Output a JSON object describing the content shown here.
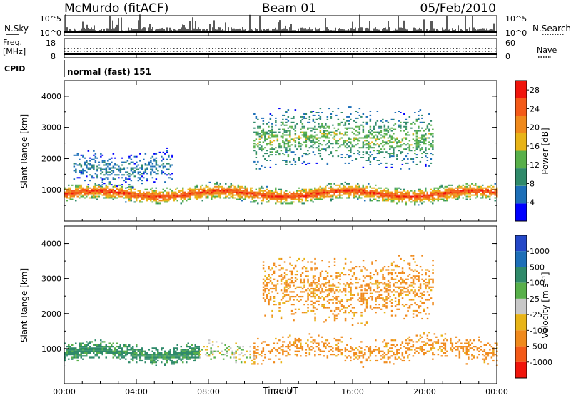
{
  "header": {
    "station": "McMurdo (fitACF)",
    "beam": "Beam 01",
    "date": "05/Feb/2010"
  },
  "status_panel": {
    "nsky_label": "N.Sky",
    "nsearch_label": "N.Search",
    "noise_ticks": [
      "10^5",
      "10^0"
    ],
    "freq_label_line1": "Freq.",
    "freq_label_line2": "[MHz]",
    "freq_ticks": [
      "18",
      "8"
    ],
    "nave_label": "Nave",
    "nave_ticks": [
      "60",
      "0"
    ],
    "cpid_label": "CPID",
    "cpid_value": "normal (fast) 151"
  },
  "colors": {
    "power_scale": [
      "#0000ff",
      "#1d6fb8",
      "#2f8a6a",
      "#58b04a",
      "#e8b417",
      "#f08a1c",
      "#f45a18",
      "#f0150c"
    ],
    "velocity_scale": [
      "#f0150c",
      "#f45a18",
      "#f08a1c",
      "#e8b417",
      "#c8c8c8",
      "#58b04a",
      "#2f8a6a",
      "#1d6fb8",
      "#2448c8"
    ]
  },
  "chart_data": [
    {
      "type": "heatmap",
      "title": "",
      "ylabel": "Slant Range [km]",
      "xlabel": "",
      "x_ticks": [
        "00:00",
        "04:00",
        "08:00",
        "12:00",
        "16:00",
        "20:00",
        "00:00"
      ],
      "y_ticks": [
        1000,
        2000,
        3000,
        4000
      ],
      "ylim": [
        0,
        4500
      ],
      "xlim_hours": [
        0,
        24
      ],
      "colorbar": {
        "label": "Power [dB]",
        "ticks": [
          "28",
          "24",
          "20",
          "16",
          "12",
          "8",
          "4"
        ],
        "range": [
          0,
          30
        ]
      },
      "echo_regions": [
        {
          "start_hour": 0,
          "end_hour": 24,
          "range_low": 600,
          "range_high": 1100,
          "peak_value": 26
        },
        {
          "start_hour": 10.5,
          "end_hour": 20.5,
          "range_low": 1800,
          "range_high": 3500,
          "peak_value": 14
        },
        {
          "start_hour": 0.5,
          "end_hour": 6,
          "range_low": 1200,
          "range_high": 2200,
          "peak_value": 8
        }
      ]
    },
    {
      "type": "heatmap",
      "title": "",
      "ylabel": "Slant Range [km]",
      "xlabel": "Time UT",
      "x_ticks": [
        "00:00",
        "04:00",
        "08:00",
        "12:00",
        "16:00",
        "20:00",
        "00:00"
      ],
      "y_ticks": [
        1000,
        2000,
        3000,
        4000
      ],
      "ylim": [
        0,
        4500
      ],
      "xlim_hours": [
        0,
        24
      ],
      "colorbar": {
        "label": "Velocity [m s⁻¹]",
        "ticks": [
          "1000",
          "500",
          "100",
          "25",
          "-25",
          "-100",
          "-500",
          "-1000"
        ],
        "range": [
          -1000,
          1000
        ]
      },
      "echo_regions": [
        {
          "start_hour": 0,
          "end_hour": 7.5,
          "range_low": 600,
          "range_high": 1100,
          "value": 200
        },
        {
          "start_hour": 7.5,
          "end_hour": 10.5,
          "range_low": 600,
          "range_high": 1100,
          "value": 0
        },
        {
          "start_hour": 10.5,
          "end_hour": 24,
          "range_low": 600,
          "range_high": 1300,
          "value": -250
        },
        {
          "start_hour": 11,
          "end_hour": 20.5,
          "range_low": 1800,
          "range_high": 3500,
          "value": -200
        }
      ]
    }
  ]
}
